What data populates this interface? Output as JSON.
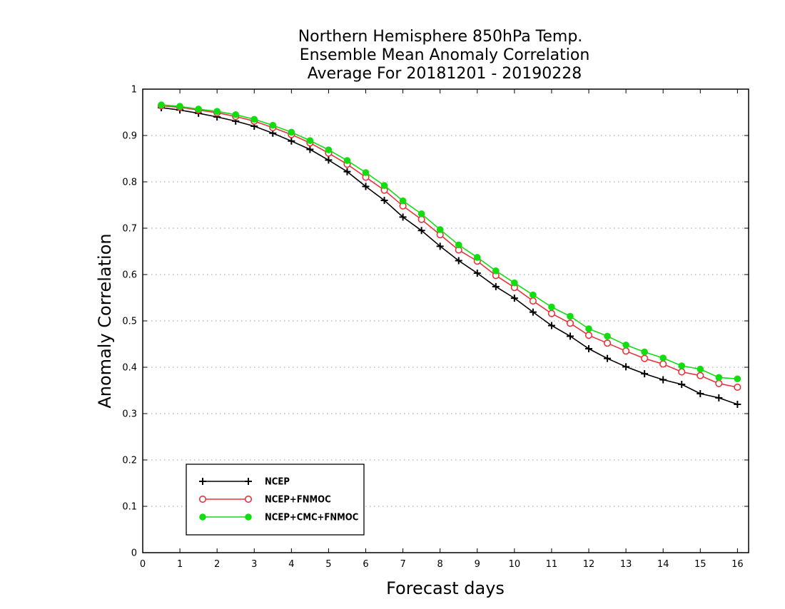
{
  "chart_data": {
    "type": "line",
    "title_lines": [
      "Northern Hemisphere 850hPa Temp.",
      "Ensemble Mean Anomaly Correlation",
      "Average For 20181201 - 20190228"
    ],
    "xlabel": "Forecast days",
    "ylabel": "Anomaly Correlation",
    "xlim": [
      0,
      16.3
    ],
    "ylim": [
      0,
      1
    ],
    "xticks": [
      "0",
      "1",
      "2",
      "3",
      "4",
      "5",
      "6",
      "7",
      "8",
      "9",
      "10",
      "11",
      "12",
      "13",
      "14",
      "15",
      "16"
    ],
    "yticks": [
      "0",
      "0.1",
      "0.2",
      "0.3",
      "0.4",
      "0.5",
      "0.6",
      "0.7",
      "0.8",
      "0.9",
      "1"
    ],
    "grid": true,
    "legend_position": "bottom-left",
    "x": [
      0.5,
      1,
      1.5,
      2,
      2.5,
      3,
      3.5,
      4,
      4.5,
      5,
      5.5,
      6,
      6.5,
      7,
      7.5,
      8,
      8.5,
      9,
      9.5,
      10,
      10.5,
      11,
      11.5,
      12,
      12.5,
      13,
      13.5,
      14,
      14.5,
      15,
      15.5,
      16
    ],
    "series": [
      {
        "name": "NCEP",
        "color": "#000000",
        "marker": "plus",
        "values": [
          0.96,
          0.955,
          0.948,
          0.94,
          0.931,
          0.92,
          0.905,
          0.888,
          0.87,
          0.847,
          0.822,
          0.79,
          0.76,
          0.724,
          0.695,
          0.661,
          0.63,
          0.603,
          0.574,
          0.549,
          0.519,
          0.49,
          0.467,
          0.44,
          0.419,
          0.401,
          0.386,
          0.373,
          0.363,
          0.343,
          0.334,
          0.32
        ]
      },
      {
        "name": "NCEP+FNMOC",
        "color": "#e8333c",
        "marker": "open-circle",
        "values": [
          0.964,
          0.961,
          0.955,
          0.949,
          0.941,
          0.931,
          0.917,
          0.902,
          0.884,
          0.862,
          0.838,
          0.81,
          0.782,
          0.748,
          0.719,
          0.686,
          0.653,
          0.629,
          0.598,
          0.572,
          0.543,
          0.516,
          0.495,
          0.469,
          0.452,
          0.435,
          0.419,
          0.407,
          0.39,
          0.382,
          0.365,
          0.357
        ]
      },
      {
        "name": "NCEP+CMC+FNMOC",
        "color": "#11dd11",
        "marker": "filled-circle",
        "values": [
          0.966,
          0.963,
          0.957,
          0.952,
          0.945,
          0.935,
          0.922,
          0.907,
          0.889,
          0.869,
          0.846,
          0.82,
          0.792,
          0.759,
          0.731,
          0.697,
          0.664,
          0.637,
          0.608,
          0.582,
          0.556,
          0.53,
          0.51,
          0.483,
          0.467,
          0.448,
          0.433,
          0.42,
          0.403,
          0.396,
          0.378,
          0.375
        ]
      }
    ]
  }
}
